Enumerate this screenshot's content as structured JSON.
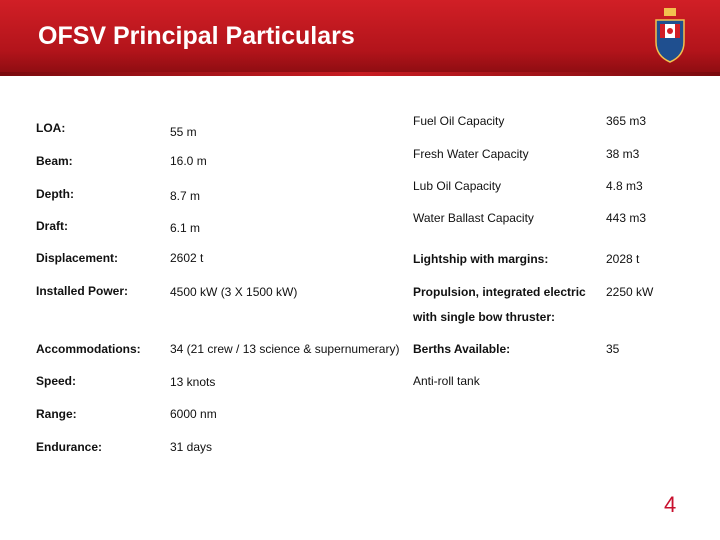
{
  "header": {
    "title": "OFSV Principal Particulars"
  },
  "left_table": {
    "rows": [
      {
        "label": "LOA:",
        "value": "55 m"
      },
      {
        "label": "Beam:",
        "value": "16.0 m"
      },
      {
        "label": "Depth:",
        "value": "8.7 m"
      },
      {
        "label": "Draft:",
        "value": "6.1 m"
      },
      {
        "label": "Displacement:",
        "value": "2602 t"
      },
      {
        "label": "Installed Power:",
        "value": "4500 kW (3 X 1500 kW)"
      },
      {
        "label": "Accommodations:",
        "value": "34 (21 crew / 13 science & supernumerary)"
      },
      {
        "label": "Speed:",
        "value": "13 knots"
      },
      {
        "label": "Range:",
        "value": "6000 nm"
      },
      {
        "label": "Endurance:",
        "value": "31 days"
      }
    ]
  },
  "right_table": {
    "rows": [
      {
        "label": "Fuel Oil Capacity",
        "value": "365 m3"
      },
      {
        "label": "Fresh Water Capacity",
        "value": "38 m3"
      },
      {
        "label": "Lub Oil Capacity",
        "value": "4.8 m3"
      },
      {
        "label": "Water Ballast Capacity",
        "value": "443 m3"
      },
      {
        "label": "Lightship with margins:",
        "value": "2028 t"
      },
      {
        "label": "Propulsion, integrated electric",
        "label_continued": "with single bow thruster:",
        "value": "2250 kW"
      },
      {
        "label": "Berths Available:",
        "value": "35"
      },
      {
        "label": "Anti-roll tank"
      }
    ]
  },
  "footer": {
    "page_number": "4"
  }
}
